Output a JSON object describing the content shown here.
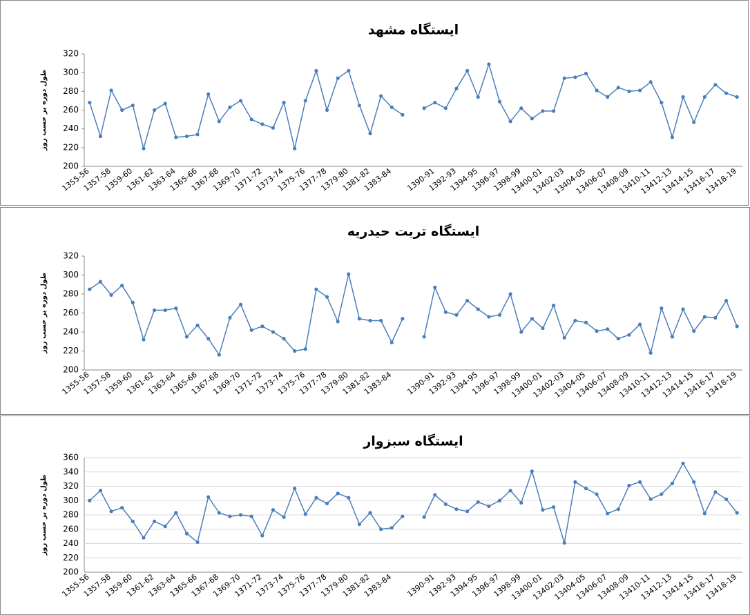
{
  "chart_data": [
    {
      "type": "line",
      "title": "ایستگاه مشهد",
      "y_label": "طول دوره بر حسب روز",
      "categories": [
        "1355-56",
        null,
        "1357-58",
        null,
        "1359-60",
        null,
        "1361-62",
        null,
        "1363-64",
        null,
        "1365-66",
        null,
        "1367-68",
        null,
        "1369-70",
        null,
        "1371-72",
        null,
        "1373-74",
        null,
        "1375-76",
        null,
        "1377-78",
        null,
        "1379-80",
        null,
        "1381-82",
        null,
        "1383-84",
        null,
        null,
        null,
        "1390-91",
        null,
        "1392-93",
        null,
        "1394-95",
        null,
        "1396-97",
        null,
        "1398-99",
        null,
        "13400-01",
        null,
        "13402-03",
        null,
        "13404-05",
        null,
        "13406-07",
        null,
        "13408-09",
        null,
        "13410-11",
        null,
        "13412-13",
        null,
        "13414-15",
        null,
        "13416-17",
        null,
        "13418-19"
      ],
      "values": [
        268,
        232,
        281,
        260,
        265,
        219,
        260,
        267,
        231,
        232,
        234,
        277,
        248,
        263,
        270,
        250,
        245,
        241,
        268,
        219,
        270,
        302,
        260,
        294,
        302,
        265,
        235,
        275,
        263,
        255,
        null,
        262,
        268,
        262,
        283,
        302,
        274,
        309,
        269,
        248,
        262,
        251,
        259,
        259,
        294,
        295,
        299,
        281,
        274,
        284,
        280,
        281,
        290,
        268,
        231,
        274,
        247,
        274,
        287,
        278,
        274
      ],
      "color": "#4a7ebb",
      "ylim": [
        200,
        320
      ],
      "yticks": [
        200,
        220,
        240,
        260,
        280,
        300,
        320
      ],
      "grid": false
    },
    {
      "type": "line",
      "title": "ایستگاه تربت حیدریه",
      "y_label": "طول دوره بر حسب روز",
      "categories": [
        "1355-56",
        null,
        "1357-58",
        null,
        "1359-60",
        null,
        "1361-62",
        null,
        "1363-64",
        null,
        "1365-66",
        null,
        "1367-68",
        null,
        "1369-70",
        null,
        "1371-72",
        null,
        "1373-74",
        null,
        "1375-76",
        null,
        "1377-78",
        null,
        "1379-80",
        null,
        "1381-82",
        null,
        "1383-84",
        null,
        null,
        null,
        "1390-91",
        null,
        "1392-93",
        null,
        "1394-95",
        null,
        "1396-97",
        null,
        "1398-99",
        null,
        "13400-01",
        null,
        "13402-03",
        null,
        "13404-05",
        null,
        "13406-07",
        null,
        "13408-09",
        null,
        "13410-11",
        null,
        "13412-13",
        null,
        "13414-15",
        null,
        "13416-17",
        null,
        "13418-19"
      ],
      "values": [
        285,
        293,
        279,
        289,
        271,
        232,
        263,
        263,
        265,
        235,
        247,
        233,
        216,
        255,
        269,
        242,
        246,
        240,
        233,
        220,
        222,
        285,
        277,
        251,
        301,
        254,
        252,
        252,
        229,
        254,
        null,
        235,
        287,
        261,
        258,
        273,
        264,
        256,
        258,
        280,
        240,
        254,
        244,
        268,
        234,
        252,
        250,
        241,
        243,
        233,
        237,
        248,
        218,
        265,
        235,
        264,
        241,
        256,
        255,
        273,
        246
      ],
      "color": "#4a7ebb",
      "ylim": [
        200,
        320
      ],
      "yticks": [
        200,
        220,
        240,
        260,
        280,
        300,
        320
      ],
      "grid": false
    },
    {
      "type": "line",
      "title": "ایستگاه سبزوار",
      "y_label": "طول دوره بر حسب روز",
      "categories": [
        "1355-56",
        null,
        "1357-58",
        null,
        "1359-60",
        null,
        "1361-62",
        null,
        "1363-64",
        null,
        "1365-66",
        null,
        "1367-68",
        null,
        "1369-70",
        null,
        "1371-72",
        null,
        "1373-74",
        null,
        "1375-76",
        null,
        "1377-78",
        null,
        "1379-80",
        null,
        "1381-82",
        null,
        "1383-84",
        null,
        null,
        null,
        "1390-91",
        null,
        "1392-93",
        null,
        "1394-95",
        null,
        "1396-97",
        null,
        "1398-99",
        null,
        "13400-01",
        null,
        "13402-03",
        null,
        "13404-05",
        null,
        "13406-07",
        null,
        "13408-09",
        null,
        "13410-11",
        null,
        "13412-13",
        null,
        "13414-15",
        null,
        "13416-17",
        null,
        "13418-19"
      ],
      "values": [
        300,
        314,
        285,
        290,
        271,
        248,
        271,
        264,
        283,
        254,
        242,
        305,
        283,
        278,
        280,
        278,
        251,
        287,
        277,
        317,
        281,
        304,
        296,
        310,
        304,
        267,
        283,
        260,
        262,
        278,
        null,
        277,
        308,
        295,
        288,
        285,
        298,
        292,
        300,
        314,
        297,
        341,
        287,
        291,
        241,
        326,
        317,
        309,
        282,
        288,
        321,
        326,
        302,
        309,
        324,
        352,
        326,
        282,
        312,
        302,
        283
      ],
      "color": "#4a7ebb",
      "ylim": [
        200,
        360
      ],
      "yticks": [
        200,
        220,
        240,
        260,
        280,
        300,
        320,
        340,
        360
      ],
      "grid": true
    }
  ]
}
